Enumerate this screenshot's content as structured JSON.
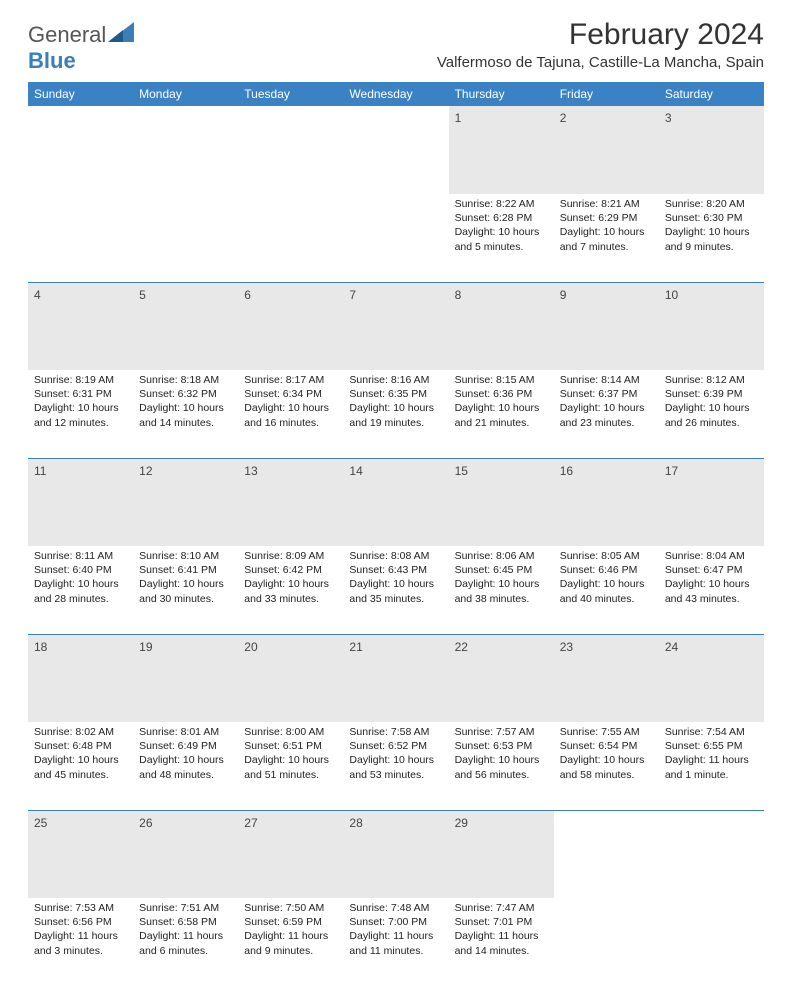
{
  "brand": {
    "part1": "General",
    "part2": "Blue"
  },
  "title": "February 2024",
  "location": "Valfermoso de Tajuna, Castille-La Mancha, Spain",
  "colors": {
    "header_bg": "#3b82c4",
    "header_fg": "#ffffff",
    "daynum_bg": "#e8e8e8",
    "border": "#3b7fb8",
    "text": "#222222",
    "brand_gray": "#555555",
    "brand_blue": "#3b7fb8"
  },
  "weekdays": [
    "Sunday",
    "Monday",
    "Tuesday",
    "Wednesday",
    "Thursday",
    "Friday",
    "Saturday"
  ],
  "weeks": [
    [
      null,
      null,
      null,
      null,
      {
        "n": "1",
        "sr": "Sunrise: 8:22 AM",
        "ss": "Sunset: 6:28 PM",
        "dl": "Daylight: 10 hours and 5 minutes."
      },
      {
        "n": "2",
        "sr": "Sunrise: 8:21 AM",
        "ss": "Sunset: 6:29 PM",
        "dl": "Daylight: 10 hours and 7 minutes."
      },
      {
        "n": "3",
        "sr": "Sunrise: 8:20 AM",
        "ss": "Sunset: 6:30 PM",
        "dl": "Daylight: 10 hours and 9 minutes."
      }
    ],
    [
      {
        "n": "4",
        "sr": "Sunrise: 8:19 AM",
        "ss": "Sunset: 6:31 PM",
        "dl": "Daylight: 10 hours and 12 minutes."
      },
      {
        "n": "5",
        "sr": "Sunrise: 8:18 AM",
        "ss": "Sunset: 6:32 PM",
        "dl": "Daylight: 10 hours and 14 minutes."
      },
      {
        "n": "6",
        "sr": "Sunrise: 8:17 AM",
        "ss": "Sunset: 6:34 PM",
        "dl": "Daylight: 10 hours and 16 minutes."
      },
      {
        "n": "7",
        "sr": "Sunrise: 8:16 AM",
        "ss": "Sunset: 6:35 PM",
        "dl": "Daylight: 10 hours and 19 minutes."
      },
      {
        "n": "8",
        "sr": "Sunrise: 8:15 AM",
        "ss": "Sunset: 6:36 PM",
        "dl": "Daylight: 10 hours and 21 minutes."
      },
      {
        "n": "9",
        "sr": "Sunrise: 8:14 AM",
        "ss": "Sunset: 6:37 PM",
        "dl": "Daylight: 10 hours and 23 minutes."
      },
      {
        "n": "10",
        "sr": "Sunrise: 8:12 AM",
        "ss": "Sunset: 6:39 PM",
        "dl": "Daylight: 10 hours and 26 minutes."
      }
    ],
    [
      {
        "n": "11",
        "sr": "Sunrise: 8:11 AM",
        "ss": "Sunset: 6:40 PM",
        "dl": "Daylight: 10 hours and 28 minutes."
      },
      {
        "n": "12",
        "sr": "Sunrise: 8:10 AM",
        "ss": "Sunset: 6:41 PM",
        "dl": "Daylight: 10 hours and 30 minutes."
      },
      {
        "n": "13",
        "sr": "Sunrise: 8:09 AM",
        "ss": "Sunset: 6:42 PM",
        "dl": "Daylight: 10 hours and 33 minutes."
      },
      {
        "n": "14",
        "sr": "Sunrise: 8:08 AM",
        "ss": "Sunset: 6:43 PM",
        "dl": "Daylight: 10 hours and 35 minutes."
      },
      {
        "n": "15",
        "sr": "Sunrise: 8:06 AM",
        "ss": "Sunset: 6:45 PM",
        "dl": "Daylight: 10 hours and 38 minutes."
      },
      {
        "n": "16",
        "sr": "Sunrise: 8:05 AM",
        "ss": "Sunset: 6:46 PM",
        "dl": "Daylight: 10 hours and 40 minutes."
      },
      {
        "n": "17",
        "sr": "Sunrise: 8:04 AM",
        "ss": "Sunset: 6:47 PM",
        "dl": "Daylight: 10 hours and 43 minutes."
      }
    ],
    [
      {
        "n": "18",
        "sr": "Sunrise: 8:02 AM",
        "ss": "Sunset: 6:48 PM",
        "dl": "Daylight: 10 hours and 45 minutes."
      },
      {
        "n": "19",
        "sr": "Sunrise: 8:01 AM",
        "ss": "Sunset: 6:49 PM",
        "dl": "Daylight: 10 hours and 48 minutes."
      },
      {
        "n": "20",
        "sr": "Sunrise: 8:00 AM",
        "ss": "Sunset: 6:51 PM",
        "dl": "Daylight: 10 hours and 51 minutes."
      },
      {
        "n": "21",
        "sr": "Sunrise: 7:58 AM",
        "ss": "Sunset: 6:52 PM",
        "dl": "Daylight: 10 hours and 53 minutes."
      },
      {
        "n": "22",
        "sr": "Sunrise: 7:57 AM",
        "ss": "Sunset: 6:53 PM",
        "dl": "Daylight: 10 hours and 56 minutes."
      },
      {
        "n": "23",
        "sr": "Sunrise: 7:55 AM",
        "ss": "Sunset: 6:54 PM",
        "dl": "Daylight: 10 hours and 58 minutes."
      },
      {
        "n": "24",
        "sr": "Sunrise: 7:54 AM",
        "ss": "Sunset: 6:55 PM",
        "dl": "Daylight: 11 hours and 1 minute."
      }
    ],
    [
      {
        "n": "25",
        "sr": "Sunrise: 7:53 AM",
        "ss": "Sunset: 6:56 PM",
        "dl": "Daylight: 11 hours and 3 minutes."
      },
      {
        "n": "26",
        "sr": "Sunrise: 7:51 AM",
        "ss": "Sunset: 6:58 PM",
        "dl": "Daylight: 11 hours and 6 minutes."
      },
      {
        "n": "27",
        "sr": "Sunrise: 7:50 AM",
        "ss": "Sunset: 6:59 PM",
        "dl": "Daylight: 11 hours and 9 minutes."
      },
      {
        "n": "28",
        "sr": "Sunrise: 7:48 AM",
        "ss": "Sunset: 7:00 PM",
        "dl": "Daylight: 11 hours and 11 minutes."
      },
      {
        "n": "29",
        "sr": "Sunrise: 7:47 AM",
        "ss": "Sunset: 7:01 PM",
        "dl": "Daylight: 11 hours and 14 minutes."
      },
      null,
      null
    ]
  ]
}
